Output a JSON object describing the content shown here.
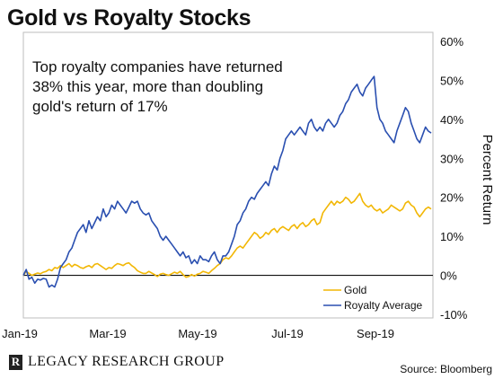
{
  "chart_data": {
    "type": "line",
    "title": "Gold vs Royalty Stocks",
    "annotation": "Top royalty companies have returned 38% this year, more than doubling gold's return of 17%",
    "xlabel": "",
    "ylabel": "Percent Return",
    "x_tick_labels": [
      "Jan-19",
      "Mar-19",
      "May-19",
      "Jul-19",
      "Sep-19"
    ],
    "y_tick_labels": [
      "60%",
      "50%",
      "40%",
      "30%",
      "20%",
      "10%",
      "0%",
      "-10%"
    ],
    "ylim": [
      -10,
      60
    ],
    "grid": false,
    "legend_position": "bottom-right",
    "source": "Source: Bloomberg",
    "series": [
      {
        "name": "Gold",
        "color": "#F2B705",
        "values": [
          0,
          1,
          0.5,
          0,
          0.3,
          0.6,
          0.4,
          0.8,
          1,
          1.5,
          1.2,
          2,
          1.8,
          2.5,
          2,
          2.5,
          3,
          2.2,
          2.8,
          2.5,
          2,
          1.8,
          2.2,
          2.5,
          2,
          2.8,
          3,
          2.5,
          2,
          1.5,
          2,
          1.8,
          2.5,
          3,
          2.8,
          2.5,
          3,
          3.2,
          2.5,
          2,
          1.2,
          0.8,
          0.5,
          0.5,
          1,
          0.6,
          0.2,
          -0.3,
          0.3,
          0.5,
          0.2,
          0,
          0.4,
          0.8,
          0.5,
          1,
          0.2,
          -0.5,
          -0.3,
          0.2,
          -0.2,
          0.3,
          0.5,
          1,
          0.8,
          0.5,
          1.2,
          1.8,
          2.5,
          3,
          4,
          4.5,
          4.2,
          5,
          6,
          7,
          7.5,
          7,
          8,
          9,
          10,
          11,
          10.5,
          9.5,
          10,
          11,
          10.5,
          11.5,
          12,
          11,
          12,
          12.5,
          12,
          11.5,
          12.5,
          13,
          12,
          13,
          13.5,
          12.5,
          13,
          14,
          14.5,
          13,
          13.5,
          16,
          17,
          18,
          19,
          18,
          19,
          18.5,
          19,
          20,
          19.5,
          18.5,
          19,
          20,
          21,
          19,
          18,
          17.5,
          18,
          17,
          16.5,
          17,
          16,
          16.5,
          17,
          18,
          17.5,
          17,
          16.5,
          17,
          18.5,
          19,
          18,
          17.5,
          16,
          15,
          16,
          17,
          17.5,
          17
        ]
      },
      {
        "name": "Royalty Average",
        "color": "#2A4FB0",
        "values": [
          0,
          1.5,
          -1,
          -0.5,
          -2,
          -1,
          -1.2,
          -0.8,
          -1,
          -3,
          -2.5,
          -3,
          -1,
          2,
          3,
          4,
          6,
          7,
          9,
          11,
          12,
          13,
          11,
          14,
          12,
          13.5,
          15,
          14,
          17,
          15,
          16,
          18,
          17,
          19,
          18,
          17,
          16,
          17.5,
          19,
          18.5,
          19,
          17,
          16,
          15.5,
          16,
          14,
          13,
          12,
          10,
          9,
          10,
          9,
          8,
          7,
          6,
          5,
          6,
          4.5,
          5,
          3,
          4,
          3,
          5,
          4,
          4,
          3.5,
          5,
          6,
          4,
          3,
          5,
          5,
          6,
          8,
          10,
          13,
          14,
          16,
          17,
          19,
          20,
          19.5,
          21,
          22,
          23,
          24,
          23,
          26,
          28,
          27,
          30,
          32,
          35,
          36,
          37,
          36,
          37,
          38,
          37,
          36,
          39,
          40,
          38,
          37,
          38,
          37,
          39,
          40,
          39,
          38,
          39,
          41,
          42,
          44,
          45,
          47,
          48,
          49,
          47,
          46,
          48,
          49,
          50,
          51,
          43,
          40,
          39,
          37,
          36,
          35,
          34,
          37,
          39,
          41,
          43,
          42,
          39,
          37,
          35,
          34,
          36,
          38,
          37,
          36.5
        ]
      }
    ]
  },
  "footer": {
    "logo_mark": "R",
    "logo_text": "LEGACY RESEARCH GROUP"
  }
}
